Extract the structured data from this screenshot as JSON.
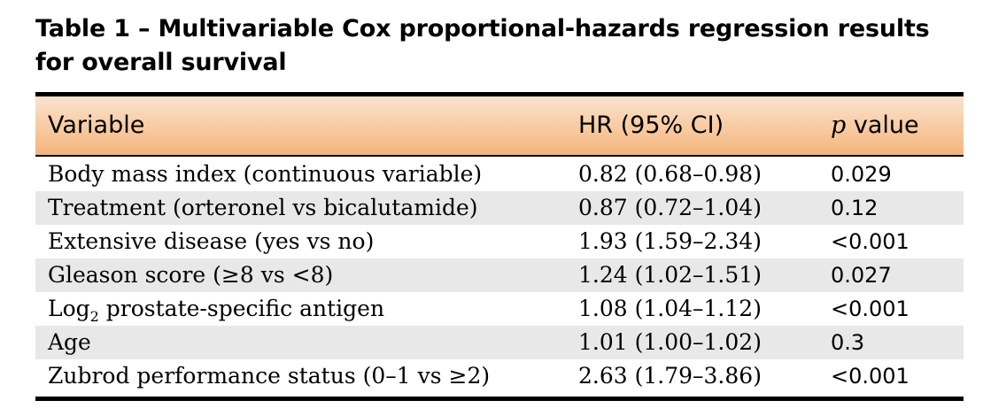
{
  "table": {
    "caption": "Table 1 – Multivariable Cox proportional-hazards regression results for overall survival",
    "headers": {
      "variable": "Variable",
      "hr": "HR (95% CI)",
      "p_italic": "p",
      "p_rest": " value"
    },
    "rows": [
      {
        "variable": "Body mass index (continuous variable)",
        "hr": "0.82 (0.68–0.98)",
        "p": "0.029"
      },
      {
        "variable": "Treatment (orteronel vs bicalutamide)",
        "hr": "0.87 (0.72–1.04)",
        "p": "0.12"
      },
      {
        "variable": "Extensive disease (yes vs no)",
        "hr": "1.93 (1.59–2.34)",
        "p": "<0.001"
      },
      {
        "variable": "Gleason score (≥8 vs <8)",
        "hr": "1.24 (1.02–1.51)",
        "p": "0.027"
      },
      {
        "variable_pre": "Log",
        "variable_sub": "2",
        "variable_post": " prostate-specific antigen",
        "hr": "1.08 (1.04–1.12)",
        "p": "<0.001"
      },
      {
        "variable": "Age",
        "hr": "1.01 (1.00–1.02)",
        "p": "0.3"
      },
      {
        "variable": "Zubrod performance status (0–1 vs ≥2)",
        "hr": "2.63 (1.79–3.86)",
        "p": "<0.001"
      }
    ]
  },
  "colors": {
    "header_gradient_top": "#fbe3cf",
    "header_gradient_bottom": "#f4b47e",
    "row_shade": "#e8e8e8",
    "rule": "#000000"
  }
}
